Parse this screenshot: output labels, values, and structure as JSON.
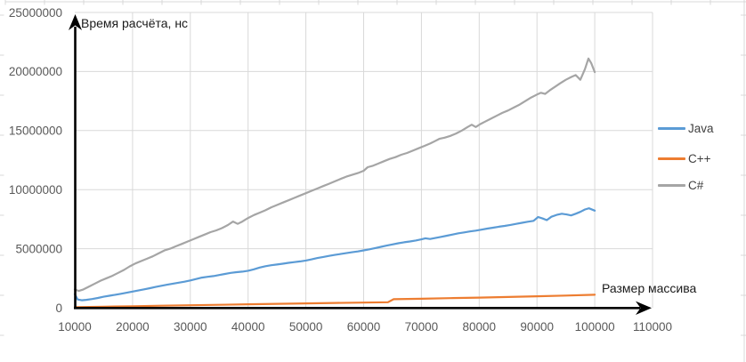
{
  "chart_data": {
    "type": "line",
    "title": "",
    "xlabel": "Размер массива",
    "ylabel": "Время расчёта, нс",
    "xlim": [
      10000,
      110000
    ],
    "ylim": [
      0,
      25000000
    ],
    "x_tick_step": 10000,
    "y_tick_step": 5000000,
    "grid": true,
    "legend_position": "right",
    "x_tick_labels": [
      "10000",
      "20000",
      "30000",
      "40000",
      "50000",
      "60000",
      "70000",
      "80000",
      "90000",
      "100000",
      "110000"
    ],
    "y_tick_labels": [
      "0",
      "5000000",
      "10000000",
      "15000000",
      "20000000",
      "25000000"
    ],
    "series": [
      {
        "name": "Java",
        "color": "#5B9BD5",
        "points": [
          [
            10000,
            1150000
          ],
          [
            10500,
            700000
          ],
          [
            11200,
            630000
          ],
          [
            12000,
            670000
          ],
          [
            13000,
            740000
          ],
          [
            14000,
            830000
          ],
          [
            15000,
            930000
          ],
          [
            16000,
            1020000
          ],
          [
            17000,
            1100000
          ],
          [
            18000,
            1180000
          ],
          [
            19000,
            1270000
          ],
          [
            20000,
            1370000
          ],
          [
            21000,
            1460000
          ],
          [
            22000,
            1560000
          ],
          [
            23000,
            1660000
          ],
          [
            24000,
            1760000
          ],
          [
            25000,
            1860000
          ],
          [
            26000,
            1950000
          ],
          [
            27000,
            2040000
          ],
          [
            28000,
            2120000
          ],
          [
            29000,
            2210000
          ],
          [
            30000,
            2310000
          ],
          [
            31000,
            2430000
          ],
          [
            32000,
            2550000
          ],
          [
            33000,
            2620000
          ],
          [
            34000,
            2680000
          ],
          [
            35000,
            2770000
          ],
          [
            36000,
            2860000
          ],
          [
            37000,
            2950000
          ],
          [
            38000,
            3010000
          ],
          [
            39000,
            3060000
          ],
          [
            40000,
            3130000
          ],
          [
            41000,
            3250000
          ],
          [
            42000,
            3400000
          ],
          [
            43000,
            3520000
          ],
          [
            44000,
            3600000
          ],
          [
            45000,
            3660000
          ],
          [
            46000,
            3730000
          ],
          [
            47000,
            3800000
          ],
          [
            48000,
            3860000
          ],
          [
            49000,
            3920000
          ],
          [
            50000,
            4000000
          ],
          [
            51000,
            4100000
          ],
          [
            52000,
            4210000
          ],
          [
            53000,
            4300000
          ],
          [
            54000,
            4390000
          ],
          [
            55000,
            4470000
          ],
          [
            56000,
            4550000
          ],
          [
            57000,
            4620000
          ],
          [
            58000,
            4700000
          ],
          [
            59000,
            4770000
          ],
          [
            60000,
            4860000
          ],
          [
            61000,
            4950000
          ],
          [
            62000,
            5050000
          ],
          [
            63000,
            5160000
          ],
          [
            64000,
            5260000
          ],
          [
            65000,
            5360000
          ],
          [
            66000,
            5460000
          ],
          [
            67000,
            5540000
          ],
          [
            68000,
            5610000
          ],
          [
            69000,
            5690000
          ],
          [
            70000,
            5790000
          ],
          [
            70700,
            5880000
          ],
          [
            71500,
            5820000
          ],
          [
            72400,
            5900000
          ],
          [
            73400,
            6000000
          ],
          [
            74400,
            6100000
          ],
          [
            75400,
            6200000
          ],
          [
            76400,
            6300000
          ],
          [
            77400,
            6380000
          ],
          [
            78400,
            6460000
          ],
          [
            79400,
            6530000
          ],
          [
            80400,
            6610000
          ],
          [
            81400,
            6700000
          ],
          [
            82400,
            6780000
          ],
          [
            83400,
            6860000
          ],
          [
            84400,
            6930000
          ],
          [
            85400,
            7010000
          ],
          [
            86400,
            7100000
          ],
          [
            87400,
            7190000
          ],
          [
            88400,
            7280000
          ],
          [
            89400,
            7360000
          ],
          [
            90200,
            7680000
          ],
          [
            91000,
            7550000
          ],
          [
            91700,
            7420000
          ],
          [
            92500,
            7700000
          ],
          [
            93400,
            7860000
          ],
          [
            94300,
            7960000
          ],
          [
            95100,
            7900000
          ],
          [
            95900,
            7820000
          ],
          [
            96700,
            7960000
          ],
          [
            97500,
            8120000
          ],
          [
            98300,
            8320000
          ],
          [
            99000,
            8420000
          ],
          [
            100000,
            8220000
          ]
        ]
      },
      {
        "name": "C++",
        "color": "#ED7D31",
        "points": [
          [
            10000,
            50000
          ],
          [
            15000,
            90000
          ],
          [
            20000,
            130000
          ],
          [
            25000,
            170000
          ],
          [
            30000,
            210000
          ],
          [
            35000,
            250000
          ],
          [
            40000,
            290000
          ],
          [
            45000,
            330000
          ],
          [
            50000,
            370000
          ],
          [
            55000,
            410000
          ],
          [
            60000,
            440000
          ],
          [
            64200,
            470000
          ],
          [
            65200,
            720000
          ],
          [
            70000,
            760000
          ],
          [
            75000,
            810000
          ],
          [
            80000,
            860000
          ],
          [
            85000,
            910000
          ],
          [
            90000,
            970000
          ],
          [
            95000,
            1030000
          ],
          [
            100000,
            1100000
          ]
        ]
      },
      {
        "name": "C#",
        "color": "#A5A5A5",
        "points": [
          [
            10000,
            1550000
          ],
          [
            10700,
            1420000
          ],
          [
            11500,
            1550000
          ],
          [
            12500,
            1800000
          ],
          [
            13500,
            2050000
          ],
          [
            14500,
            2300000
          ],
          [
            15500,
            2500000
          ],
          [
            16500,
            2700000
          ],
          [
            17500,
            2950000
          ],
          [
            18500,
            3200000
          ],
          [
            19500,
            3500000
          ],
          [
            20500,
            3750000
          ],
          [
            21500,
            3950000
          ],
          [
            22500,
            4150000
          ],
          [
            23500,
            4350000
          ],
          [
            24500,
            4600000
          ],
          [
            25500,
            4850000
          ],
          [
            26500,
            5000000
          ],
          [
            27500,
            5200000
          ],
          [
            28500,
            5400000
          ],
          [
            29500,
            5600000
          ],
          [
            30500,
            5800000
          ],
          [
            31500,
            6000000
          ],
          [
            32500,
            6200000
          ],
          [
            33500,
            6400000
          ],
          [
            34500,
            6550000
          ],
          [
            35500,
            6750000
          ],
          [
            36500,
            7000000
          ],
          [
            37400,
            7300000
          ],
          [
            38200,
            7100000
          ],
          [
            39000,
            7300000
          ],
          [
            40000,
            7600000
          ],
          [
            41000,
            7850000
          ],
          [
            42000,
            8050000
          ],
          [
            43000,
            8250000
          ],
          [
            44000,
            8500000
          ],
          [
            45000,
            8700000
          ],
          [
            46000,
            8900000
          ],
          [
            47000,
            9100000
          ],
          [
            48000,
            9300000
          ],
          [
            49000,
            9500000
          ],
          [
            50000,
            9700000
          ],
          [
            51000,
            9900000
          ],
          [
            52000,
            10100000
          ],
          [
            53000,
            10300000
          ],
          [
            54000,
            10500000
          ],
          [
            55000,
            10700000
          ],
          [
            56000,
            10900000
          ],
          [
            57000,
            11100000
          ],
          [
            58000,
            11250000
          ],
          [
            59000,
            11400000
          ],
          [
            60000,
            11600000
          ],
          [
            60700,
            11900000
          ],
          [
            61500,
            12000000
          ],
          [
            62500,
            12200000
          ],
          [
            63500,
            12400000
          ],
          [
            64500,
            12600000
          ],
          [
            65500,
            12750000
          ],
          [
            66500,
            12950000
          ],
          [
            67500,
            13100000
          ],
          [
            68500,
            13300000
          ],
          [
            69500,
            13500000
          ],
          [
            70500,
            13700000
          ],
          [
            71500,
            13900000
          ],
          [
            72300,
            14100000
          ],
          [
            73100,
            14300000
          ],
          [
            74000,
            14400000
          ],
          [
            75000,
            14550000
          ],
          [
            76000,
            14750000
          ],
          [
            77000,
            15000000
          ],
          [
            78000,
            15300000
          ],
          [
            78700,
            15500000
          ],
          [
            79400,
            15300000
          ],
          [
            80200,
            15550000
          ],
          [
            81000,
            15750000
          ],
          [
            82000,
            16000000
          ],
          [
            83000,
            16250000
          ],
          [
            84000,
            16500000
          ],
          [
            85000,
            16700000
          ],
          [
            86000,
            16950000
          ],
          [
            87000,
            17200000
          ],
          [
            88000,
            17500000
          ],
          [
            89000,
            17800000
          ],
          [
            90000,
            18050000
          ],
          [
            90700,
            18200000
          ],
          [
            91400,
            18100000
          ],
          [
            92200,
            18400000
          ],
          [
            93100,
            18700000
          ],
          [
            94000,
            19000000
          ],
          [
            95000,
            19300000
          ],
          [
            96000,
            19550000
          ],
          [
            96700,
            19700000
          ],
          [
            97500,
            19300000
          ],
          [
            98300,
            20200000
          ],
          [
            98900,
            21100000
          ],
          [
            99400,
            20700000
          ],
          [
            100000,
            19950000
          ]
        ]
      }
    ]
  },
  "legend": {
    "items": [
      {
        "label": "Java",
        "color": "#5B9BD5"
      },
      {
        "label": "C++",
        "color": "#ED7D31"
      },
      {
        "label": "C#",
        "color": "#A5A5A5"
      }
    ]
  },
  "colors": {
    "background": "#FFFFFF",
    "gridline": "#D9D9D9",
    "axis": "#000000",
    "tick_label": "#595959",
    "legend_label": "#404040",
    "remnant": "#D9D9D9"
  }
}
